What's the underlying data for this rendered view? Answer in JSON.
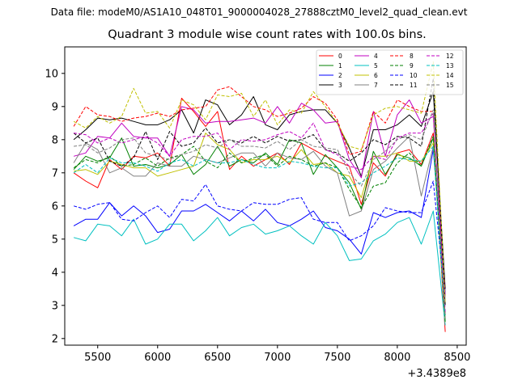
{
  "suptitle": "Data file: modeM0/AS1A10_048T01_9000004028_27888cztM0_level2_quad_clean.evt",
  "chart_data": {
    "type": "line",
    "title": "Quadrant 3 module wise count rates with 100.0s bins.",
    "xlabel": "",
    "ylabel": "",
    "x_offset_label": "+3.4389e8",
    "xlim": [
      5225,
      8575
    ],
    "ylim": [
      1.8,
      10.8
    ],
    "xticks": [
      5500,
      6000,
      6500,
      7000,
      7500,
      8000,
      8500
    ],
    "yticks": [
      2,
      3,
      4,
      5,
      6,
      7,
      8,
      9,
      10
    ],
    "x": [
      5300,
      5400,
      5500,
      5600,
      5700,
      5800,
      5900,
      6000,
      6100,
      6200,
      6300,
      6400,
      6500,
      6600,
      6700,
      6800,
      6900,
      7000,
      7100,
      7200,
      7300,
      7400,
      7500,
      7600,
      7700,
      7800,
      7900,
      8000,
      8100,
      8200,
      8300,
      8400
    ],
    "series": [
      {
        "name": "0",
        "color": "#ff0000",
        "dash": "solid",
        "values": [
          7.0,
          6.75,
          6.55,
          7.4,
          7.1,
          7.5,
          7.45,
          7.6,
          7.2,
          9.25,
          8.85,
          8.4,
          8.85,
          7.1,
          7.5,
          7.2,
          7.4,
          7.6,
          7.25,
          7.9,
          7.7,
          7.5,
          7.35,
          7.2,
          6.05,
          7.3,
          6.9,
          7.6,
          7.7,
          7.25,
          8.2,
          2.2
        ]
      },
      {
        "name": "1",
        "color": "#008000",
        "dash": "solid",
        "values": [
          7.1,
          7.5,
          7.35,
          7.45,
          8.05,
          7.2,
          7.25,
          7.15,
          7.25,
          7.55,
          6.95,
          7.25,
          7.8,
          7.2,
          7.4,
          7.3,
          7.6,
          7.25,
          8.0,
          7.9,
          6.95,
          7.55,
          7.15,
          6.7,
          5.9,
          7.65,
          6.95,
          7.55,
          7.45,
          7.2,
          8.05,
          2.7
        ]
      },
      {
        "name": "2",
        "color": "#0000ff",
        "dash": "solid",
        "values": [
          5.4,
          5.6,
          5.6,
          6.1,
          5.7,
          6.0,
          5.7,
          5.2,
          5.3,
          5.85,
          5.85,
          6.05,
          5.8,
          5.55,
          5.85,
          5.55,
          5.9,
          5.5,
          5.4,
          5.6,
          5.85,
          5.35,
          5.25,
          5.0,
          4.55,
          5.8,
          5.65,
          5.8,
          5.85,
          5.65,
          7.7,
          3.4
        ]
      },
      {
        "name": "3",
        "color": "#000000",
        "dash": "solid",
        "values": [
          8.0,
          8.3,
          8.65,
          8.6,
          8.65,
          8.55,
          8.45,
          8.45,
          8.6,
          8.9,
          8.2,
          9.2,
          9.05,
          8.45,
          8.75,
          9.3,
          8.45,
          8.3,
          8.75,
          8.85,
          8.9,
          8.9,
          8.5,
          7.75,
          6.9,
          8.3,
          8.3,
          8.45,
          8.75,
          8.4,
          9.45,
          3.5
        ]
      },
      {
        "name": "4",
        "color": "#c000c0",
        "dash": "solid",
        "values": [
          7.5,
          7.6,
          8.1,
          8.05,
          8.5,
          8.1,
          8.05,
          8.05,
          7.5,
          9.0,
          8.9,
          8.5,
          8.55,
          8.55,
          8.6,
          8.65,
          8.5,
          9.0,
          8.5,
          9.1,
          8.9,
          8.5,
          8.55,
          7.4,
          6.85,
          8.85,
          7.5,
          8.75,
          9.2,
          8.5,
          8.7,
          3.3
        ]
      },
      {
        "name": "5",
        "color": "#00c0c0",
        "dash": "solid",
        "values": [
          5.05,
          4.95,
          5.45,
          5.4,
          5.1,
          5.6,
          4.85,
          5.0,
          5.45,
          5.45,
          4.95,
          5.25,
          5.65,
          5.1,
          5.35,
          5.45,
          5.15,
          5.25,
          5.4,
          5.1,
          4.85,
          5.5,
          5.1,
          4.35,
          4.4,
          4.95,
          5.15,
          5.5,
          5.65,
          4.85,
          5.85,
          2.4
        ]
      },
      {
        "name": "6",
        "color": "#c0c000",
        "dash": "solid",
        "values": [
          7.05,
          7.1,
          6.95,
          7.35,
          7.25,
          7.15,
          7.15,
          6.9,
          7.0,
          7.1,
          7.2,
          8.2,
          7.85,
          7.7,
          7.3,
          7.4,
          7.4,
          7.5,
          7.3,
          7.7,
          7.25,
          7.3,
          7.0,
          6.9,
          6.25,
          7.5,
          7.5,
          7.6,
          7.35,
          7.35,
          7.9,
          2.5
        ]
      },
      {
        "name": "7",
        "color": "#808080",
        "dash": "solid",
        "values": [
          7.3,
          7.9,
          7.7,
          7.0,
          7.15,
          6.9,
          6.9,
          7.3,
          7.2,
          7.2,
          7.5,
          7.4,
          7.3,
          7.45,
          7.6,
          7.6,
          7.2,
          7.6,
          7.45,
          7.4,
          7.65,
          7.2,
          7.0,
          5.7,
          5.85,
          7.1,
          7.35,
          7.75,
          8.1,
          6.3,
          7.8,
          3.0
        ]
      },
      {
        "name": "8",
        "color": "#ff0000",
        "dash": "dashed",
        "values": [
          8.4,
          9.0,
          8.75,
          8.7,
          8.55,
          8.65,
          8.7,
          8.8,
          8.7,
          8.9,
          8.95,
          9.0,
          9.5,
          9.6,
          9.3,
          9.0,
          8.9,
          8.7,
          8.8,
          8.95,
          9.3,
          9.1,
          8.6,
          7.55,
          7.65,
          8.85,
          8.5,
          9.2,
          9.0,
          8.85,
          8.85,
          2.6
        ]
      },
      {
        "name": "9",
        "color": "#008000",
        "dash": "dashed",
        "values": [
          7.15,
          7.4,
          7.3,
          7.5,
          7.2,
          7.25,
          7.45,
          7.2,
          7.45,
          7.55,
          7.8,
          7.35,
          7.15,
          7.6,
          7.3,
          7.45,
          7.55,
          7.2,
          7.5,
          7.4,
          7.2,
          7.3,
          7.15,
          6.5,
          5.95,
          6.6,
          6.7,
          7.3,
          7.6,
          7.2,
          8.1,
          2.5
        ]
      },
      {
        "name": "10",
        "color": "#0000ff",
        "dash": "dashed",
        "values": [
          6.0,
          5.9,
          6.05,
          6.1,
          5.6,
          5.55,
          5.8,
          6.0,
          5.65,
          6.2,
          6.15,
          6.65,
          6.0,
          5.9,
          5.85,
          6.1,
          6.05,
          6.05,
          6.2,
          6.25,
          5.6,
          5.5,
          5.5,
          4.95,
          5.1,
          5.4,
          5.95,
          5.85,
          5.8,
          5.8,
          6.75,
          3.2
        ]
      },
      {
        "name": "11",
        "color": "#000000",
        "dash": "dashed",
        "values": [
          8.2,
          7.9,
          8.05,
          7.35,
          7.2,
          7.45,
          8.25,
          7.4,
          8.25,
          7.8,
          7.9,
          8.35,
          7.9,
          8.0,
          7.9,
          8.1,
          7.9,
          8.1,
          7.95,
          8.0,
          8.15,
          7.7,
          7.6,
          7.35,
          7.6,
          8.0,
          7.85,
          8.1,
          8.05,
          7.8,
          9.85,
          3.0
        ]
      },
      {
        "name": "12",
        "color": "#c000c0",
        "dash": "dashed",
        "values": [
          8.2,
          8.15,
          7.9,
          8.05,
          7.9,
          8.0,
          8.1,
          7.9,
          7.5,
          8.0,
          8.1,
          8.1,
          8.2,
          7.7,
          8.0,
          7.95,
          8.0,
          8.15,
          8.25,
          8.05,
          8.5,
          7.7,
          7.55,
          7.2,
          7.1,
          7.5,
          7.4,
          8.05,
          8.2,
          8.2,
          8.8,
          2.8
        ]
      },
      {
        "name": "13",
        "color": "#00c0c0",
        "dash": "dashed",
        "values": [
          7.0,
          7.25,
          7.0,
          7.45,
          7.3,
          7.3,
          7.2,
          7.05,
          7.3,
          7.4,
          7.2,
          7.4,
          7.3,
          7.3,
          7.4,
          7.25,
          7.15,
          7.15,
          7.35,
          7.3,
          7.2,
          7.15,
          7.15,
          6.6,
          6.7,
          7.0,
          7.2,
          7.45,
          7.4,
          7.35,
          7.8,
          2.6
        ]
      },
      {
        "name": "14",
        "color": "#c0c000",
        "dash": "dashed",
        "values": [
          8.55,
          8.35,
          8.7,
          8.5,
          8.7,
          9.55,
          8.8,
          8.85,
          8.35,
          9.2,
          9.05,
          8.6,
          9.35,
          9.3,
          9.4,
          8.7,
          9.2,
          8.45,
          8.9,
          8.8,
          9.45,
          9.0,
          8.5,
          7.8,
          7.7,
          8.75,
          8.95,
          9.0,
          8.9,
          8.8,
          10.35,
          3.1
        ]
      },
      {
        "name": "15",
        "color": "#808080",
        "dash": "dashed",
        "values": [
          7.8,
          7.85,
          7.6,
          7.75,
          8.0,
          8.05,
          7.6,
          7.5,
          7.4,
          7.55,
          7.65,
          7.85,
          7.75,
          8.0,
          7.8,
          7.8,
          7.75,
          7.95,
          7.7,
          8.0,
          7.8,
          7.75,
          7.7,
          7.0,
          6.6,
          7.4,
          7.65,
          8.0,
          8.15,
          8.0,
          8.9,
          2.6
        ]
      }
    ]
  }
}
